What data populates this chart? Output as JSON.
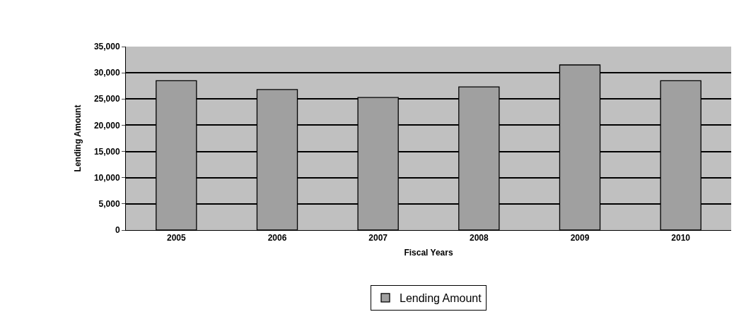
{
  "chart_data": {
    "type": "bar",
    "xlabel": "Fiscal Years",
    "ylabel": "Lending Amount",
    "categories": [
      "2005",
      "2006",
      "2007",
      "2008",
      "2009",
      "2010"
    ],
    "series": [
      {
        "name": "Lending Amount",
        "color": "#a0a0a0",
        "values": [
          28500,
          26800,
          25300,
          27300,
          31500,
          28500
        ]
      }
    ],
    "ylim": [
      0,
      35000
    ],
    "yticks": [
      {
        "value": 0,
        "label": "0"
      },
      {
        "value": 5000,
        "label": "5,000"
      },
      {
        "value": 10000,
        "label": "10,000"
      },
      {
        "value": 15000,
        "label": "15,000"
      },
      {
        "value": 20000,
        "label": "20,000"
      },
      {
        "value": 25000,
        "label": "25,000"
      },
      {
        "value": 30000,
        "label": "30,000"
      },
      {
        "value": 35000,
        "label": "35,000"
      }
    ],
    "grid": "y",
    "legend": "bottom"
  }
}
